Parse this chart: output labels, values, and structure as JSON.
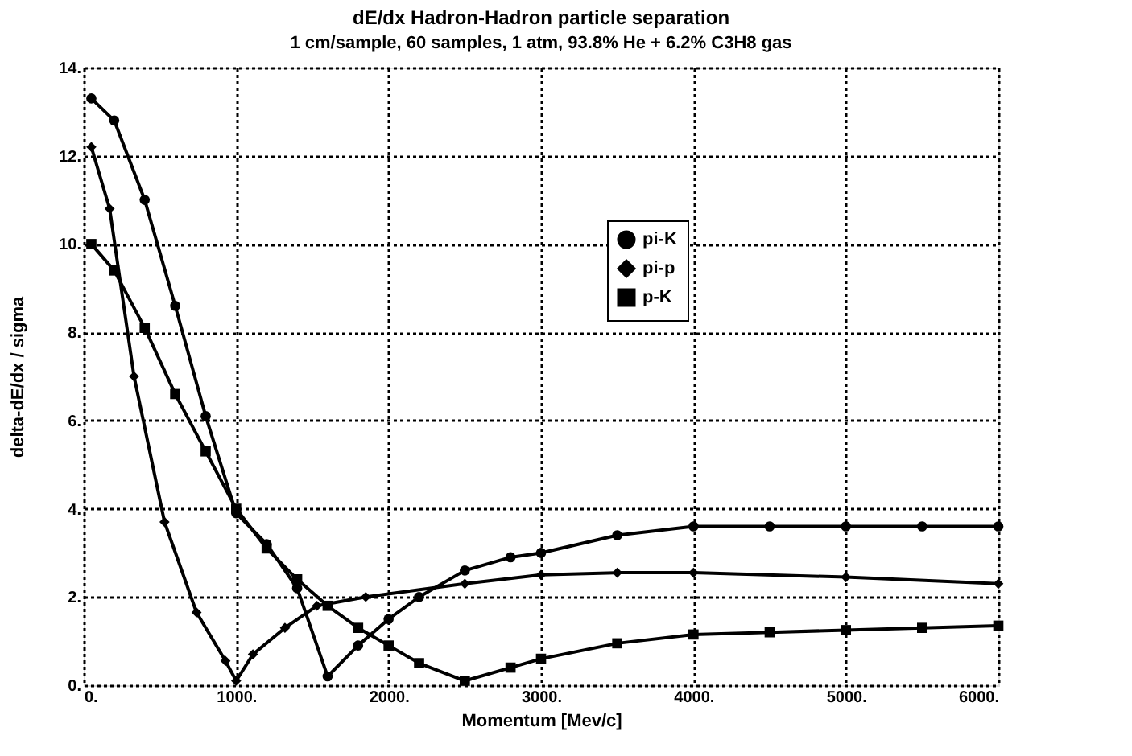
{
  "chart_data": {
    "type": "line",
    "title": "dE/dx    Hadron-Hadron  particle  separation",
    "subtitle": "1 cm/sample, 60 samples, 1 atm,  93.8% He + 6.2% C3H8  gas",
    "xlabel": "Momentum [Mev/c]",
    "ylabel": "delta-dE/dx / sigma",
    "series": [
      {
        "name": "pi-K",
        "color": "#000000",
        "marker": "circle",
        "x": [
          50,
          200,
          400,
          600,
          800,
          1000,
          1200,
          1400,
          1600,
          1800,
          2000,
          2200,
          2500,
          2800,
          3000,
          3500,
          4000,
          4500,
          5000,
          5500,
          6000
        ],
        "values": [
          13.3,
          12.8,
          11.0,
          8.6,
          6.1,
          3.9,
          3.2,
          2.2,
          0.2,
          0.9,
          1.5,
          2.0,
          2.6,
          2.9,
          3.0,
          3.4,
          3.6,
          3.6,
          3.6,
          3.6,
          3.6
        ]
      },
      {
        "name": "pi-p",
        "color": "#000000",
        "marker": "diamond",
        "x": [
          50,
          170,
          330,
          530,
          740,
          930,
          1000,
          1110,
          1320,
          1530,
          1850,
          2500,
          3000,
          3500,
          4000,
          5000,
          6000
        ],
        "values": [
          12.2,
          10.8,
          7.0,
          3.7,
          1.65,
          0.55,
          0.1,
          0.7,
          1.3,
          1.8,
          2.0,
          2.3,
          2.5,
          2.55,
          2.55,
          2.45,
          2.3
        ]
      },
      {
        "name": "p-K",
        "color": "#000000",
        "marker": "square",
        "x": [
          50,
          200,
          400,
          600,
          800,
          1000,
          1200,
          1400,
          1600,
          1800,
          2000,
          2200,
          2500,
          2800,
          3000,
          3500,
          4000,
          4500,
          5000,
          5500,
          6000
        ],
        "values": [
          10.0,
          9.4,
          8.1,
          6.6,
          5.3,
          4.0,
          3.1,
          2.4,
          1.8,
          1.3,
          0.9,
          0.5,
          0.1,
          0.4,
          0.6,
          0.95,
          1.15,
          1.2,
          1.25,
          1.3,
          1.35
        ]
      }
    ],
    "xlim": [
      0,
      6000
    ],
    "xticks": [
      {
        "value": 0,
        "label": "0."
      },
      {
        "value": 1000,
        "label": "1000."
      },
      {
        "value": 2000,
        "label": "2000."
      },
      {
        "value": 3000,
        "label": "3000."
      },
      {
        "value": 4000,
        "label": "4000."
      },
      {
        "value": 5000,
        "label": "5000."
      },
      {
        "value": 6000,
        "label": "6000."
      }
    ],
    "ylim": [
      0,
      14
    ],
    "yticks": [
      {
        "value": 0,
        "label": "0."
      },
      {
        "value": 2,
        "label": "2."
      },
      {
        "value": 4,
        "label": "4."
      },
      {
        "value": 6,
        "label": "6."
      },
      {
        "value": 8,
        "label": "8."
      },
      {
        "value": 10,
        "label": "10."
      },
      {
        "value": 12,
        "label": "12."
      },
      {
        "value": 14,
        "label": "14."
      }
    ],
    "grid": true,
    "legend": "top right",
    "line_style": "solid"
  }
}
